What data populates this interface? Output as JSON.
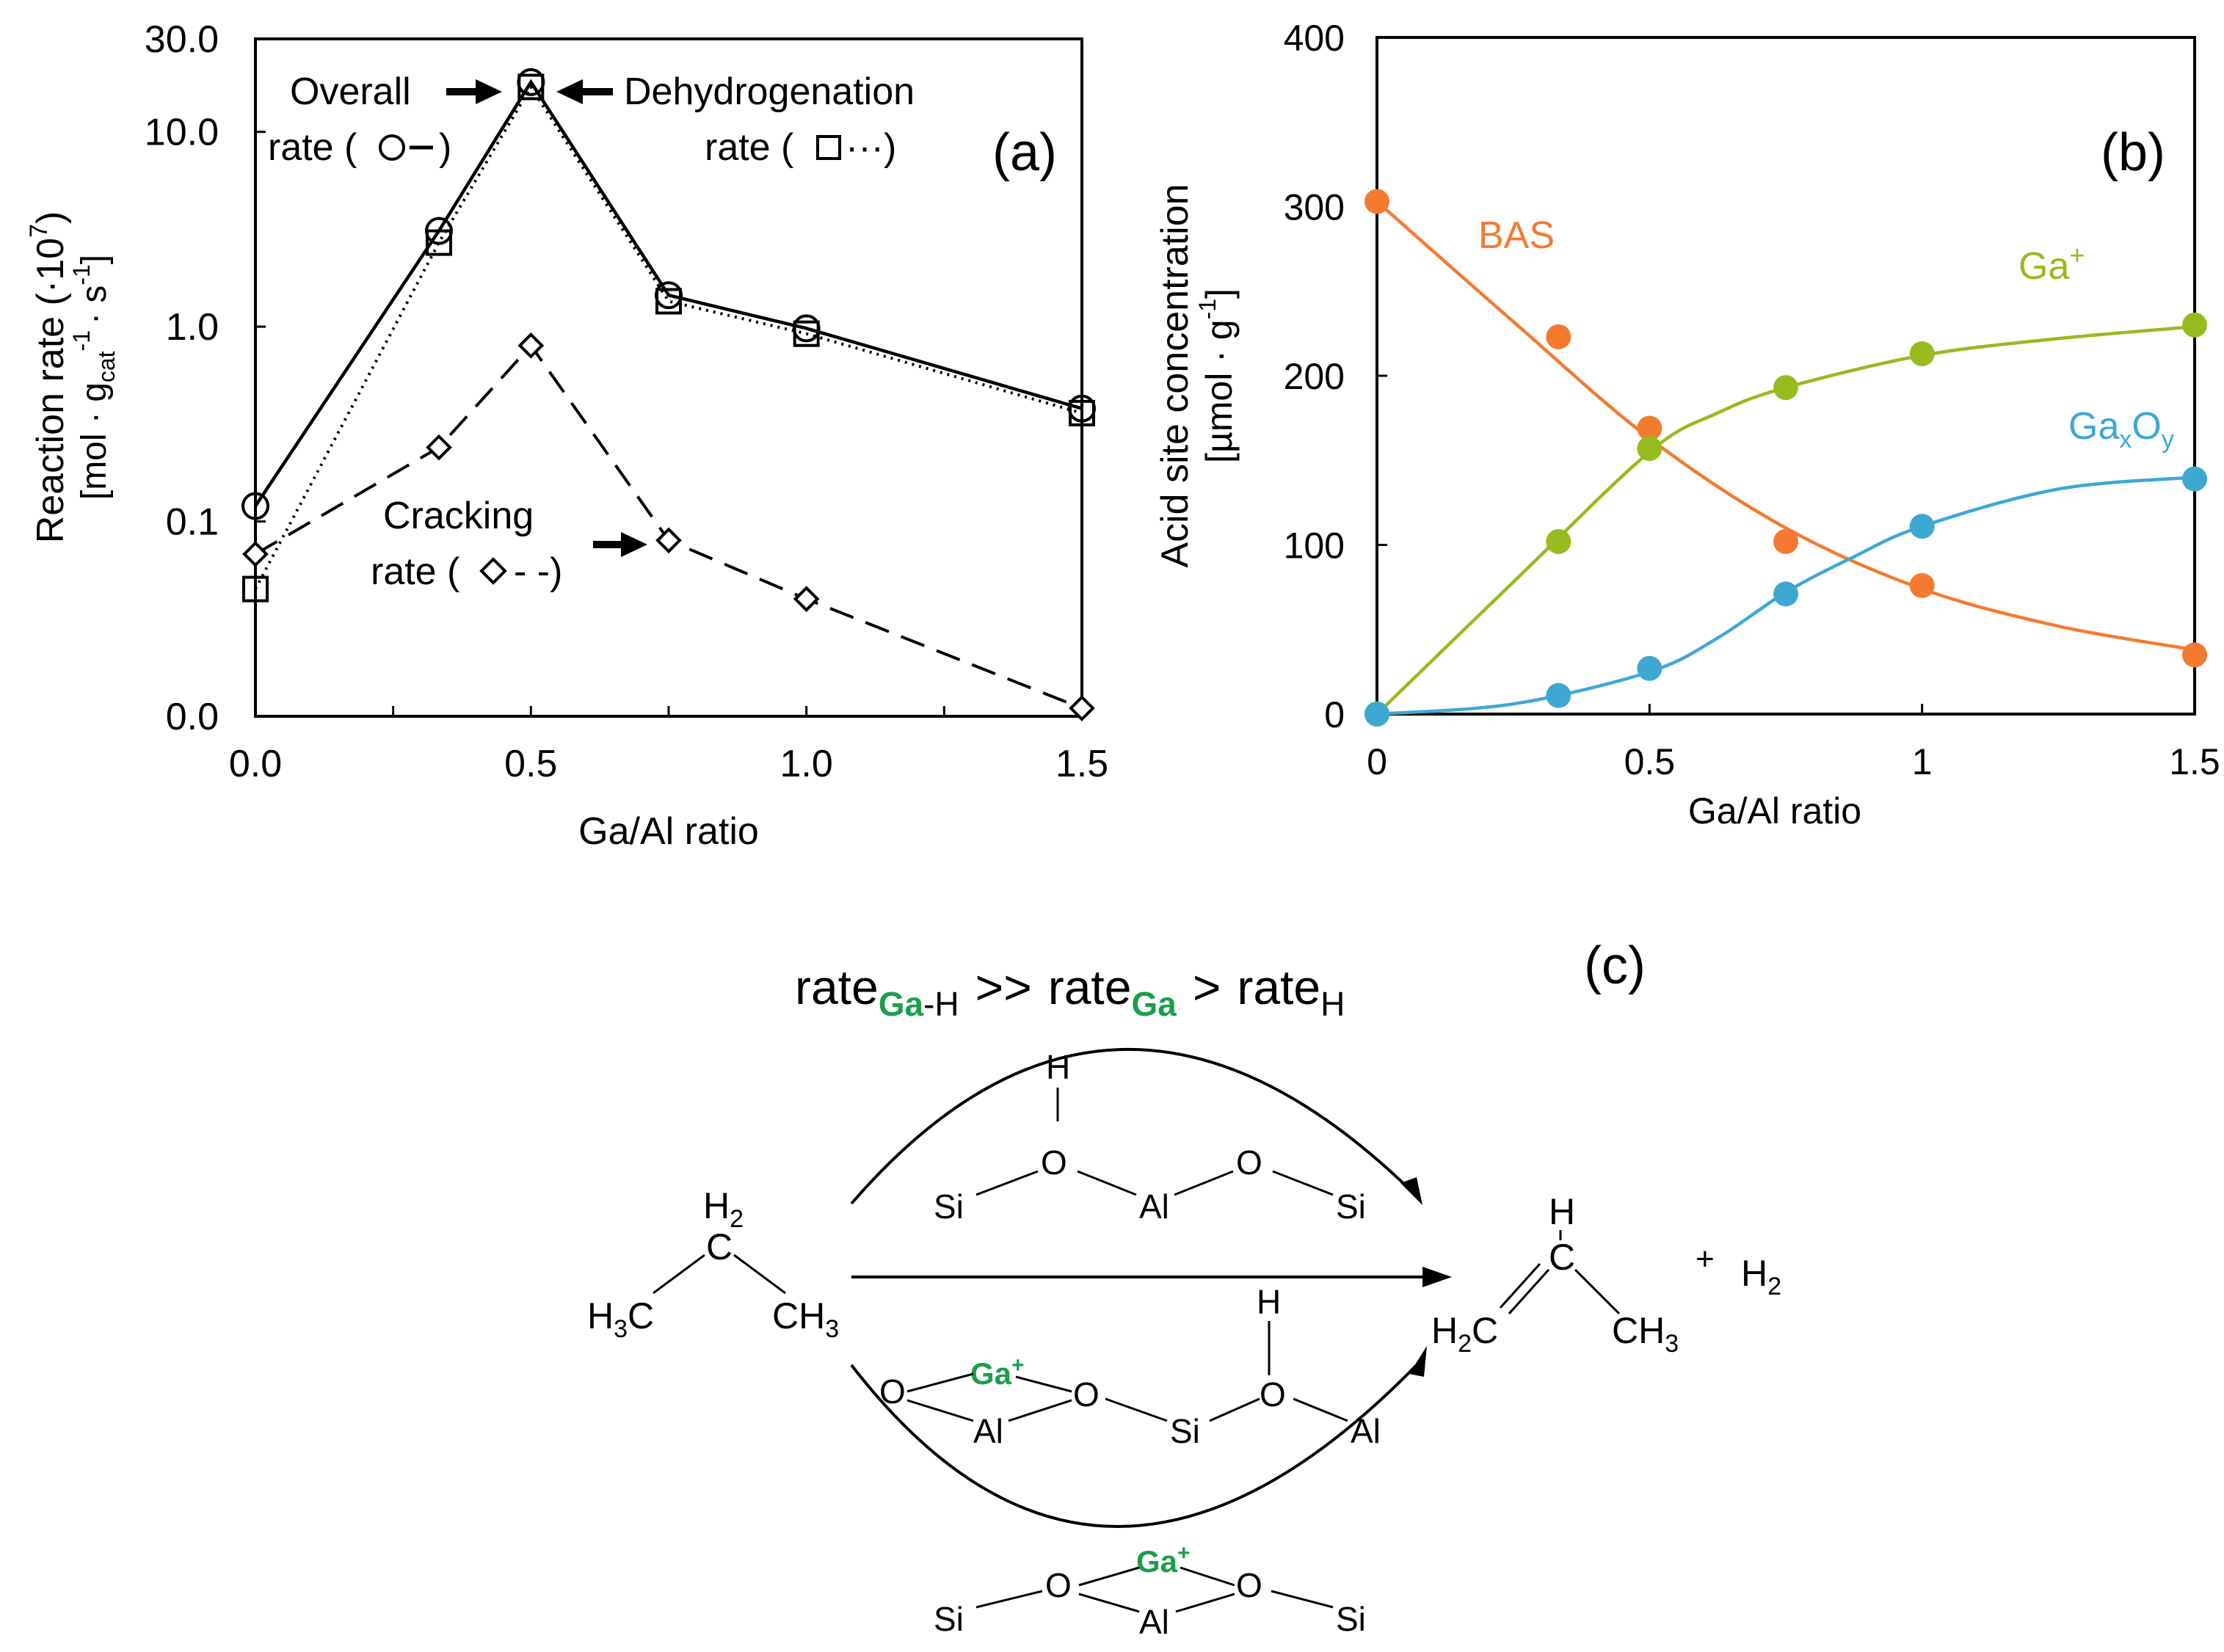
{
  "chart_data": [
    {
      "panel": "a",
      "type": "line",
      "label": "(a)",
      "xlabel": "Ga/Al ratio",
      "ylabel_line1": "Reaction rate (·10",
      "ylabel_sup": "7",
      "ylabel_close": ")",
      "ylabel_line2_a": "[mol · g",
      "ylabel_line2_sub": "cat",
      "ylabel_line2_sup1": "-1",
      "ylabel_line2_b": "· s",
      "ylabel_line2_sup2": "-1",
      "ylabel_line2_c": "]",
      "xlim": [
        0,
        1.5
      ],
      "ylim": [
        0.01,
        30
      ],
      "yscale": "log",
      "x_ticks": [
        0,
        0.5,
        1.0,
        1.5
      ],
      "x_tick_labels": [
        "0.0",
        "0.5",
        "1.0",
        "1.5"
      ],
      "y_ticks": [
        0.01,
        0.1,
        1.0,
        10.0,
        30.0
      ],
      "y_tick_labels": [
        "0.0",
        "0.1",
        "1.0",
        "10.0",
        "30.0"
      ],
      "series": [
        {
          "name": "Overall rate",
          "marker": "circle",
          "line": "solid",
          "x": [
            0,
            0.333,
            0.5,
            0.75,
            1.0,
            1.5
          ],
          "values": [
            0.12,
            3.1,
            18.0,
            1.45,
            0.98,
            0.38
          ]
        },
        {
          "name": "Dehydrogenation rate",
          "marker": "square",
          "line": "dotted",
          "x": [
            0,
            0.333,
            0.5,
            0.75,
            1.0,
            1.5
          ],
          "values": [
            0.045,
            2.7,
            17.0,
            1.35,
            0.92,
            0.36
          ]
        },
        {
          "name": "Cracking rate",
          "marker": "diamond",
          "line": "dashed",
          "x": [
            0,
            0.333,
            0.5,
            0.75,
            1.0,
            1.5
          ],
          "values": [
            0.068,
            0.24,
            0.8,
            0.08,
            0.04,
            0.011
          ]
        }
      ],
      "annotations": {
        "overall_1": "Overall",
        "overall_2": "rate (",
        "overall_3": ")",
        "dehydro_1": "Dehydrogenation",
        "dehydro_2": "rate (",
        "dehydro_3": "···)",
        "cracking_1": "Cracking",
        "cracking_2": "rate (",
        "cracking_3": "- -)"
      }
    },
    {
      "panel": "b",
      "type": "scatter",
      "label": "(b)",
      "xlabel": "Ga/Al ratio",
      "ylabel_line1": "Acid site concentration",
      "ylabel_line2": "[µmol · g",
      "ylabel_line2_sup": "-1",
      "ylabel_line2_close": "]",
      "xlim": [
        0,
        1.5
      ],
      "ylim": [
        0,
        400
      ],
      "x_ticks": [
        0,
        0.5,
        1,
        1.5
      ],
      "x_tick_labels": [
        "0",
        "0.5",
        "1",
        "1.5"
      ],
      "y_ticks": [
        0,
        100,
        200,
        300,
        400
      ],
      "y_tick_labels": [
        "0",
        "100",
        "200",
        "300",
        "400"
      ],
      "series": [
        {
          "name": "BAS",
          "color": "#F47A30",
          "x": [
            0,
            0.333,
            0.5,
            0.75,
            1.0,
            1.5
          ],
          "values": [
            303,
            223,
            169,
            102,
            76,
            35
          ]
        },
        {
          "name": "Ga⁺",
          "color": "#97BB1F",
          "x": [
            0,
            0.333,
            0.5,
            0.75,
            1.0,
            1.5
          ],
          "values": [
            0,
            102,
            157,
            193,
            213,
            230
          ]
        },
        {
          "name": "GaxOy",
          "color": "#3EA8D3",
          "x": [
            0,
            0.333,
            0.5,
            0.75,
            1.0,
            1.5
          ],
          "values": [
            0,
            11,
            27,
            71,
            111,
            139
          ]
        }
      ],
      "curves": [
        {
          "name": "BAS",
          "x": [
            0,
            0.25,
            0.5,
            0.75,
            1.0,
            1.25,
            1.5
          ],
          "values": [
            303,
            232,
            163,
            110,
            74,
            52,
            38
          ]
        },
        {
          "name": "Ga⁺",
          "x": [
            0,
            0.25,
            0.5,
            0.625,
            0.75,
            1.0,
            1.25,
            1.5
          ],
          "values": [
            0,
            78,
            155,
            178,
            193,
            212,
            222,
            229
          ]
        },
        {
          "name": "GaxOy",
          "x": [
            0,
            0.25,
            0.5,
            0.625,
            0.75,
            0.875,
            1.0,
            1.25,
            1.5
          ],
          "values": [
            0,
            6,
            25,
            45,
            72,
            93,
            111,
            133,
            140
          ]
        }
      ],
      "legend": {
        "bas": "BAS",
        "ga_plus": "Ga",
        "ga_plus_sup": "+",
        "gaxoy_ga": "Ga",
        "gaxoy_x": "x",
        "gaxoy_o": "O",
        "gaxoy_y": "y"
      },
      "colors": {
        "bas": "#F47A30",
        "ga_plus": "#97BB1F",
        "gaxoy": "#3EA8D3"
      }
    }
  ],
  "scheme": {
    "label": "(c)",
    "rate_word": "rate",
    "ga_h_sub_ga": "Ga",
    "ga_h_sub_h": "-H",
    "gtgt": ">>",
    "gt": ">",
    "h_sub": "H",
    "propane_h2": "H",
    "propane_h2_sub": "2",
    "propane_c": "C",
    "propane_h3c": "H",
    "propane_h3c_sub": "3",
    "propane_h3c_c": "C",
    "propane_ch3": "CH",
    "propane_ch3_sub": "3",
    "propene_h": "H",
    "propene_c": "C",
    "propene_h2c": "H",
    "propene_h2c_sub": "2",
    "propene_h2c_c": "C",
    "propene_ch3": "CH",
    "propene_ch3_sub": "3",
    "plus": "+",
    "h2": "H",
    "h2_sub": "2",
    "si": "Si",
    "o": "O",
    "al": "Al",
    "h": "H",
    "ga": "Ga",
    "ga_sup": "+",
    "green": "#1B9E4B"
  }
}
